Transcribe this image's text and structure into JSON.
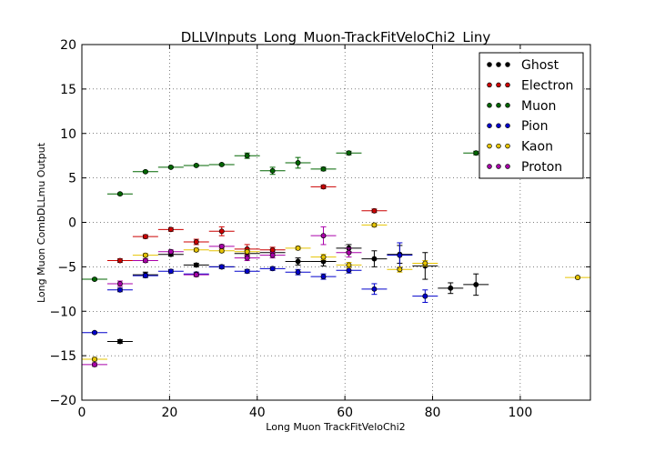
{
  "chart_data": {
    "type": "scatter",
    "title": "DLLVInputs_Long_Muon-TrackFitVeloChi2_Liny",
    "xlabel": "Long Muon TrackFitVeloChi2",
    "ylabel": "Long Muon CombDLLmu Output",
    "xlim": [
      0,
      116
    ],
    "ylim": [
      -20,
      20
    ],
    "x_ticks": [
      "0",
      "20",
      "40",
      "60",
      "80",
      "100"
    ],
    "y_ticks": [
      "-20",
      "-15",
      "-10",
      "-5",
      "0",
      "5",
      "10",
      "15",
      "20"
    ],
    "legend_position": "top-right",
    "grid": true,
    "x_half_width": 2.9,
    "series": [
      {
        "name": "Ghost",
        "color": "#000000",
        "points": [
          {
            "x": 8.7,
            "y": -13.4,
            "err": 0.2
          },
          {
            "x": 14.5,
            "y": -5.9,
            "err": 0.3
          },
          {
            "x": 20.3,
            "y": -3.6,
            "err": 0.2
          },
          {
            "x": 26.1,
            "y": -4.8,
            "err": 0.2
          },
          {
            "x": 31.9,
            "y": -5.0,
            "err": 0.2
          },
          {
            "x": 37.7,
            "y": -3.5,
            "err": 0.3
          },
          {
            "x": 43.5,
            "y": -3.4,
            "err": 0.3
          },
          {
            "x": 49.3,
            "y": -4.4,
            "err": 0.4
          },
          {
            "x": 55.1,
            "y": -4.4,
            "err": 0.5
          },
          {
            "x": 60.9,
            "y": -2.9,
            "err": 0.4
          },
          {
            "x": 66.7,
            "y": -4.1,
            "err": 0.9
          },
          {
            "x": 72.5,
            "y": -3.6,
            "err": 1.0
          },
          {
            "x": 78.3,
            "y": -4.9,
            "err": 1.5
          },
          {
            "x": 84.1,
            "y": -7.4,
            "err": 0.6
          },
          {
            "x": 89.9,
            "y": -7.0,
            "err": 1.2
          }
        ]
      },
      {
        "name": "Electron",
        "color": "#cc0000",
        "points": [
          {
            "x": 8.7,
            "y": -4.3,
            "err": 0.2
          },
          {
            "x": 14.5,
            "y": -1.6,
            "err": 0.2
          },
          {
            "x": 20.3,
            "y": -0.8,
            "err": 0.2
          },
          {
            "x": 26.1,
            "y": -2.2,
            "err": 0.3
          },
          {
            "x": 31.9,
            "y": -1.0,
            "err": 0.5
          },
          {
            "x": 37.7,
            "y": -3.0,
            "err": 0.5
          },
          {
            "x": 43.5,
            "y": -3.1,
            "err": 0.3
          },
          {
            "x": 55.1,
            "y": 4.0,
            "err": 0.2
          },
          {
            "x": 66.7,
            "y": 1.3,
            "err": 0.2
          }
        ]
      },
      {
        "name": "Muon",
        "color": "#006600",
        "points": [
          {
            "x": 2.9,
            "y": -6.4,
            "err": 0.1
          },
          {
            "x": 8.7,
            "y": 3.2,
            "err": 0.1
          },
          {
            "x": 14.5,
            "y": 5.7,
            "err": 0.1
          },
          {
            "x": 20.3,
            "y": 6.2,
            "err": 0.1
          },
          {
            "x": 26.1,
            "y": 6.4,
            "err": 0.1
          },
          {
            "x": 31.9,
            "y": 6.5,
            "err": 0.1
          },
          {
            "x": 37.7,
            "y": 7.5,
            "err": 0.3
          },
          {
            "x": 43.5,
            "y": 5.8,
            "err": 0.4
          },
          {
            "x": 49.3,
            "y": 6.7,
            "err": 0.6
          },
          {
            "x": 55.1,
            "y": 6.0,
            "err": 0.2
          },
          {
            "x": 60.9,
            "y": 7.8,
            "err": 0.2
          },
          {
            "x": 89.9,
            "y": 7.8,
            "err": 0.2
          }
        ]
      },
      {
        "name": "Pion",
        "color": "#0000cc",
        "points": [
          {
            "x": 2.9,
            "y": -12.4,
            "err": 0.1
          },
          {
            "x": 8.7,
            "y": -7.6,
            "err": 0.2
          },
          {
            "x": 14.5,
            "y": -6.0,
            "err": 0.2
          },
          {
            "x": 20.3,
            "y": -5.5,
            "err": 0.2
          },
          {
            "x": 26.1,
            "y": -5.8,
            "err": 0.2
          },
          {
            "x": 31.9,
            "y": -5.0,
            "err": 0.2
          },
          {
            "x": 37.7,
            "y": -5.5,
            "err": 0.2
          },
          {
            "x": 43.5,
            "y": -5.2,
            "err": 0.2
          },
          {
            "x": 49.3,
            "y": -5.6,
            "err": 0.3
          },
          {
            "x": 55.1,
            "y": -6.1,
            "err": 0.3
          },
          {
            "x": 60.9,
            "y": -5.4,
            "err": 0.3
          },
          {
            "x": 66.7,
            "y": -7.5,
            "err": 0.6
          },
          {
            "x": 72.5,
            "y": -3.7,
            "err": 1.4
          },
          {
            "x": 78.3,
            "y": -8.3,
            "err": 0.7
          }
        ]
      },
      {
        "name": "Kaon",
        "color": "#e6c400",
        "points": [
          {
            "x": 2.9,
            "y": -15.4,
            "err": 0.2
          },
          {
            "x": 14.5,
            "y": -3.7,
            "err": 0.2
          },
          {
            "x": 26.1,
            "y": -3.1,
            "err": 0.2
          },
          {
            "x": 31.9,
            "y": -3.2,
            "err": 0.2
          },
          {
            "x": 37.7,
            "y": -3.3,
            "err": 0.2
          },
          {
            "x": 49.3,
            "y": -2.9,
            "err": 0.2
          },
          {
            "x": 55.1,
            "y": -3.9,
            "err": 0.3
          },
          {
            "x": 60.9,
            "y": -4.8,
            "err": 0.3
          },
          {
            "x": 66.7,
            "y": -0.3,
            "err": 0.2
          },
          {
            "x": 72.5,
            "y": -5.3,
            "err": 0.3
          },
          {
            "x": 78.3,
            "y": -4.6,
            "err": 0.3
          },
          {
            "x": 113.1,
            "y": -6.2,
            "err": 0.1
          }
        ]
      },
      {
        "name": "Proton",
        "color": "#aa00aa",
        "points": [
          {
            "x": 2.9,
            "y": -16.0,
            "err": 0.2
          },
          {
            "x": 8.7,
            "y": -6.9,
            "err": 0.3
          },
          {
            "x": 14.5,
            "y": -4.3,
            "err": 0.2
          },
          {
            "x": 20.3,
            "y": -3.3,
            "err": 0.2
          },
          {
            "x": 26.1,
            "y": -5.9,
            "err": 0.2
          },
          {
            "x": 31.9,
            "y": -2.7,
            "err": 0.2
          },
          {
            "x": 37.7,
            "y": -4.0,
            "err": 0.3
          },
          {
            "x": 43.5,
            "y": -3.7,
            "err": 0.3
          },
          {
            "x": 55.1,
            "y": -1.5,
            "err": 1.0
          },
          {
            "x": 60.9,
            "y": -3.4,
            "err": 0.5
          }
        ]
      }
    ]
  }
}
